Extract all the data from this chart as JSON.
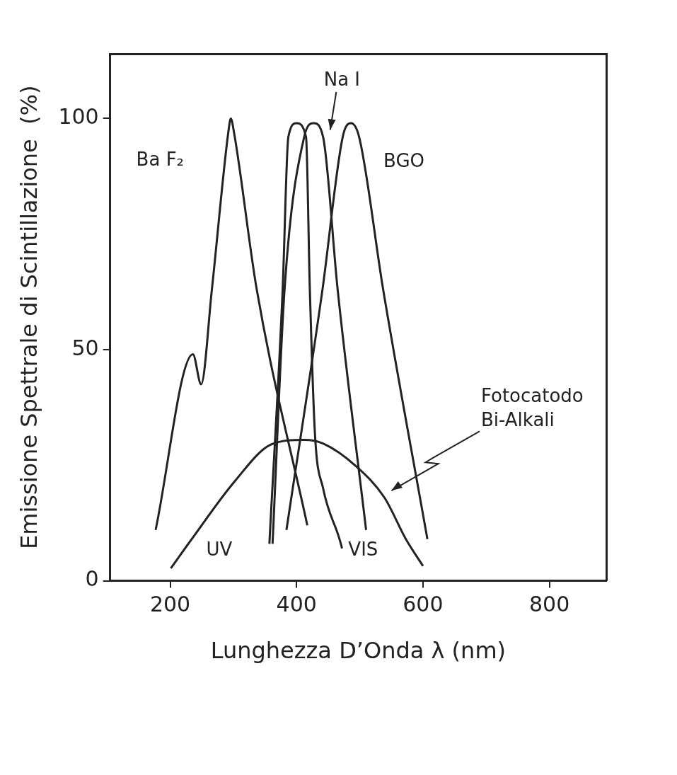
{
  "chart_data": {
    "type": "line",
    "xlabel": "Lunghezza D’Onda λ (nm)",
    "ylabel": "Emissione Spettrale di Scintillazione  (%)",
    "xlim": [
      105,
      890
    ],
    "xticks": [
      200,
      400,
      600,
      800
    ],
    "ylim": [
      0,
      114
    ],
    "yticks": [
      0,
      50,
      100
    ],
    "grid": false,
    "legend": false,
    "marker": "none",
    "line_style": "solid",
    "series": [
      {
        "name": "Ba F₂",
        "color": "#222222",
        "x": [
          177,
          236,
          249,
          266,
          292,
          296,
          301,
          337,
          417
        ],
        "values": [
          11,
          49,
          42.5,
          63,
          97,
          100,
          97,
          63,
          12
        ]
      },
      {
        "color": "#222222",
        "x": [
          357,
          378,
          387,
          400,
          415,
          421,
          429,
          442,
          468,
          472
        ],
        "values": [
          8,
          63,
          96,
          99,
          96,
          63,
          32,
          20,
          9,
          7
        ]
      },
      {
        "name": "Na I",
        "color": "#222222",
        "x": [
          362,
          381,
          412,
          427,
          442,
          465,
          510
        ],
        "values": [
          8,
          63,
          96,
          99,
          96,
          63,
          11
        ]
      },
      {
        "name": "BGO",
        "color": "#222222",
        "x": [
          384,
          441,
          473,
          486,
          499,
          537,
          607
        ],
        "values": [
          11,
          63,
          96,
          99,
          96,
          63,
          9
        ]
      },
      {
        "name": "Fotocatodo Bi-Alkali",
        "color": "#222222",
        "x": [
          201,
          234,
          302,
          360,
          412,
          442,
          494,
          539,
          573,
          600
        ],
        "values": [
          2.7,
          9,
          21.5,
          29.5,
          30.5,
          29.7,
          24.8,
          18,
          9,
          3.2
        ]
      }
    ],
    "annotations": [
      "UV",
      "VIS"
    ]
  }
}
